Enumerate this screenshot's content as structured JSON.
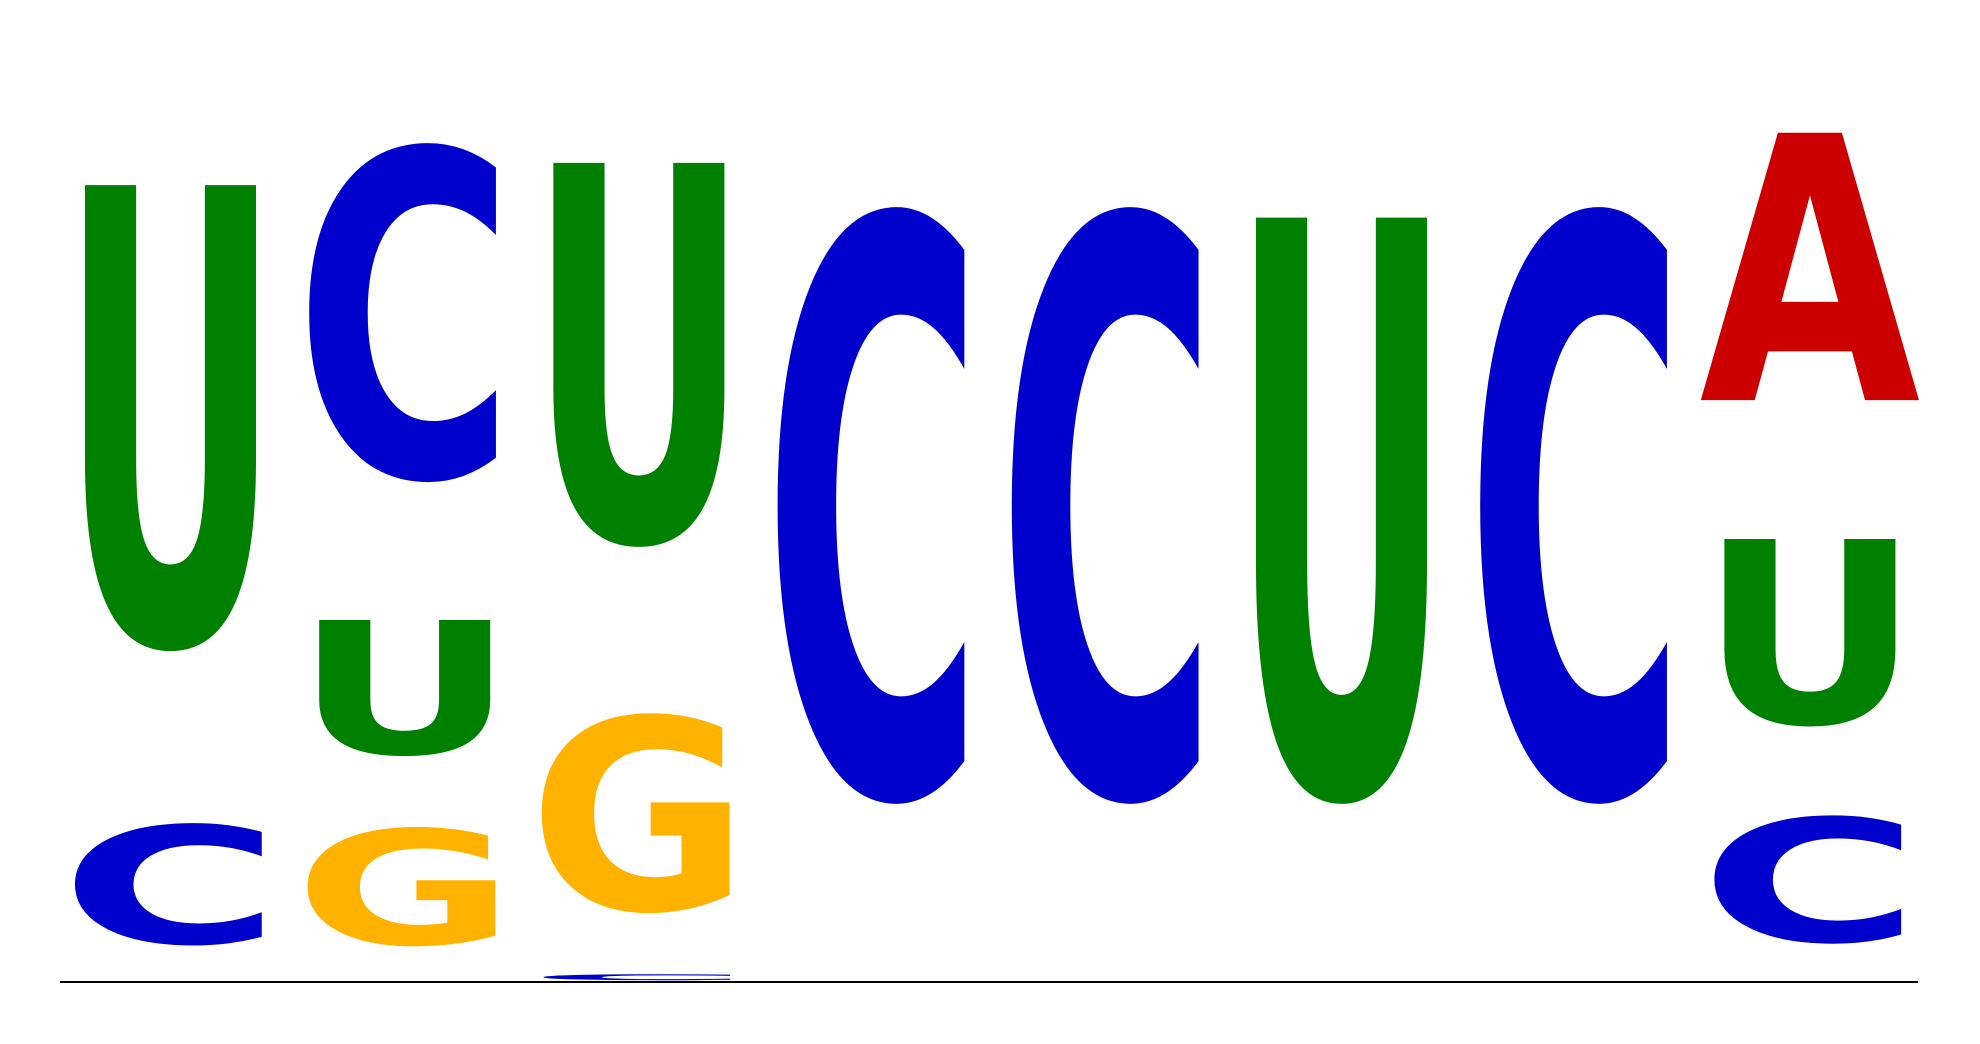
{
  "logo": {
    "type": "sequence-logo",
    "alphabet": [
      "A",
      "C",
      "G",
      "U"
    ],
    "colors": {
      "A": "#cc0000",
      "C": "#0000cc",
      "G": "#ffb300",
      "U": "#008000"
    },
    "positions": [
      {
        "index": 1,
        "letters": [
          {
            "char": "C",
            "frac": 0.205
          },
          {
            "char": "U",
            "frac": 0.795
          }
        ]
      },
      {
        "index": 2,
        "letters": [
          {
            "char": "G",
            "frac": 0.2
          },
          {
            "char": "U",
            "frac": 0.232
          },
          {
            "char": "C",
            "frac": 0.568
          }
        ]
      },
      {
        "index": 3,
        "letters": [
          {
            "char": "C",
            "frac": 0.01
          },
          {
            "char": "G",
            "frac": 0.335
          },
          {
            "char": "U",
            "frac": 0.655
          }
        ]
      },
      {
        "index": 4,
        "letters": [
          {
            "char": "C",
            "frac": 1.0
          }
        ]
      },
      {
        "index": 5,
        "letters": [
          {
            "char": "C",
            "frac": 1.0
          }
        ]
      },
      {
        "index": 6,
        "letters": [
          {
            "char": "U",
            "frac": 1.0
          }
        ]
      },
      {
        "index": 7,
        "letters": [
          {
            "char": "C",
            "frac": 1.0
          }
        ]
      },
      {
        "index": 8,
        "letters": [
          {
            "char": "C",
            "frac": 0.215
          },
          {
            "char": "U",
            "frac": 0.32
          },
          {
            "char": "A",
            "frac": 0.465
          }
        ]
      }
    ]
  }
}
